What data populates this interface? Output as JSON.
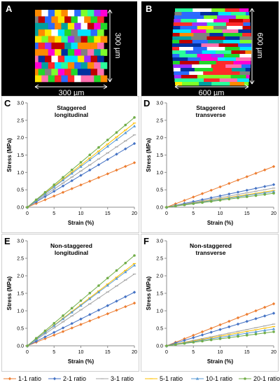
{
  "panels": {
    "a": {
      "label": "A",
      "dim_horizontal": "300 µm",
      "dim_vertical": "300 µm"
    },
    "b": {
      "label": "B",
      "dim_horizontal": "600 µm",
      "dim_vertical": "600 µm"
    }
  },
  "legend": {
    "series": [
      {
        "name": "1-1 ratio",
        "color": "#ED7D31",
        "marker": "diamond"
      },
      {
        "name": "2-1 ratio",
        "color": "#4472C4",
        "marker": "diamond"
      },
      {
        "name": "3-1 ratio",
        "color": "#A5A5A5",
        "marker": "dash"
      },
      {
        "name": "5-1 ratio",
        "color": "#FFC000",
        "marker": "dash"
      },
      {
        "name": "10-1 ratio",
        "color": "#5B9BD5",
        "marker": "triangle"
      },
      {
        "name": "20-1 ratio",
        "color": "#70AD47",
        "marker": "circle"
      }
    ]
  },
  "chart_data": [
    {
      "panel": "C",
      "type": "line",
      "title": "Staggered\nlongitudinal",
      "xlabel": "Strain (%)",
      "ylabel": "Stress (MPa)",
      "xlim": [
        0,
        20
      ],
      "ylim": [
        0,
        3.0
      ],
      "xticks": [
        "0",
        "5",
        "10",
        "15",
        "20"
      ],
      "yticks": [
        "0.0",
        "0.5",
        "1.0",
        "1.5",
        "2.0",
        "2.5",
        "3.0"
      ],
      "x": [
        0,
        1.67,
        3.33,
        5,
        6.67,
        8.33,
        10,
        11.67,
        13.33,
        15,
        16.67,
        18.33,
        20
      ],
      "series": [
        {
          "name": "1-1 ratio",
          "end": 1.28
        },
        {
          "name": "2-1 ratio",
          "end": 1.83
        },
        {
          "name": "3-1 ratio",
          "end": 2.08
        },
        {
          "name": "5-1 ratio",
          "end": 2.42
        },
        {
          "name": "10-1 ratio",
          "end": 2.33
        },
        {
          "name": "20-1 ratio",
          "end": 2.58
        }
      ]
    },
    {
      "panel": "D",
      "type": "line",
      "title": "Staggered\ntransverse",
      "xlabel": "Strain (%)",
      "ylabel": "Stress (MPa)",
      "xlim": [
        0,
        20
      ],
      "ylim": [
        0,
        3.0
      ],
      "xticks": [
        "0",
        "5",
        "10",
        "15",
        "20"
      ],
      "yticks": [
        "0.0",
        "0.5",
        "1.0",
        "1.5",
        "2.0",
        "2.5",
        "3.0"
      ],
      "x": [
        0,
        1.67,
        3.33,
        5,
        6.67,
        8.33,
        10,
        11.67,
        13.33,
        15,
        16.67,
        18.33,
        20
      ],
      "series": [
        {
          "name": "1-1 ratio",
          "end": 1.17
        },
        {
          "name": "2-1 ratio",
          "end": 0.65
        },
        {
          "name": "3-1 ratio",
          "end": 0.55
        },
        {
          "name": "5-1 ratio",
          "end": 0.48
        },
        {
          "name": "10-1 ratio",
          "end": 0.45
        },
        {
          "name": "20-1 ratio",
          "end": 0.4
        }
      ]
    },
    {
      "panel": "E",
      "type": "line",
      "title": "Non-staggered\nlongitudinal",
      "xlabel": "Strain (%)",
      "ylabel": "Stress (MPa)",
      "xlim": [
        0,
        20
      ],
      "ylim": [
        0,
        3.0
      ],
      "xticks": [
        "0",
        "5",
        "10",
        "15",
        "20"
      ],
      "yticks": [
        "0.0",
        "0.5",
        "1.0",
        "1.5",
        "2.0",
        "2.5",
        "3.0"
      ],
      "x": [
        0,
        1.67,
        3.33,
        5,
        6.67,
        8.33,
        10,
        11.67,
        13.33,
        15,
        16.67,
        18.33,
        20
      ],
      "series": [
        {
          "name": "1-1 ratio",
          "end": 1.22
        },
        {
          "name": "2-1 ratio",
          "end": 1.53
        },
        {
          "name": "3-1 ratio",
          "end": 2.05
        },
        {
          "name": "5-1 ratio",
          "end": 2.35
        },
        {
          "name": "10-1 ratio",
          "end": 2.3
        },
        {
          "name": "20-1 ratio",
          "end": 2.58
        }
      ]
    },
    {
      "panel": "F",
      "type": "line",
      "title": "Non-staggered\ntransverse",
      "xlabel": "Strain (%)",
      "ylabel": "Stress (MPa)",
      "xlim": [
        0,
        20
      ],
      "ylim": [
        0,
        3.0
      ],
      "xticks": [
        "0",
        "5",
        "10",
        "15",
        "20"
      ],
      "yticks": [
        "0.0",
        "0.5",
        "1.0",
        "1.5",
        "2.0",
        "2.5",
        "3.0"
      ],
      "x": [
        0,
        1.67,
        3.33,
        5,
        6.67,
        8.33,
        10,
        11.67,
        13.33,
        15,
        16.67,
        18.33,
        20
      ],
      "series": [
        {
          "name": "1-1 ratio",
          "end": 1.2
        },
        {
          "name": "2-1 ratio",
          "end": 0.93
        },
        {
          "name": "3-1 ratio",
          "end": 0.62
        },
        {
          "name": "5-1 ratio",
          "end": 0.55
        },
        {
          "name": "10-1 ratio",
          "end": 0.48
        },
        {
          "name": "20-1 ratio",
          "end": 0.4
        }
      ]
    }
  ]
}
